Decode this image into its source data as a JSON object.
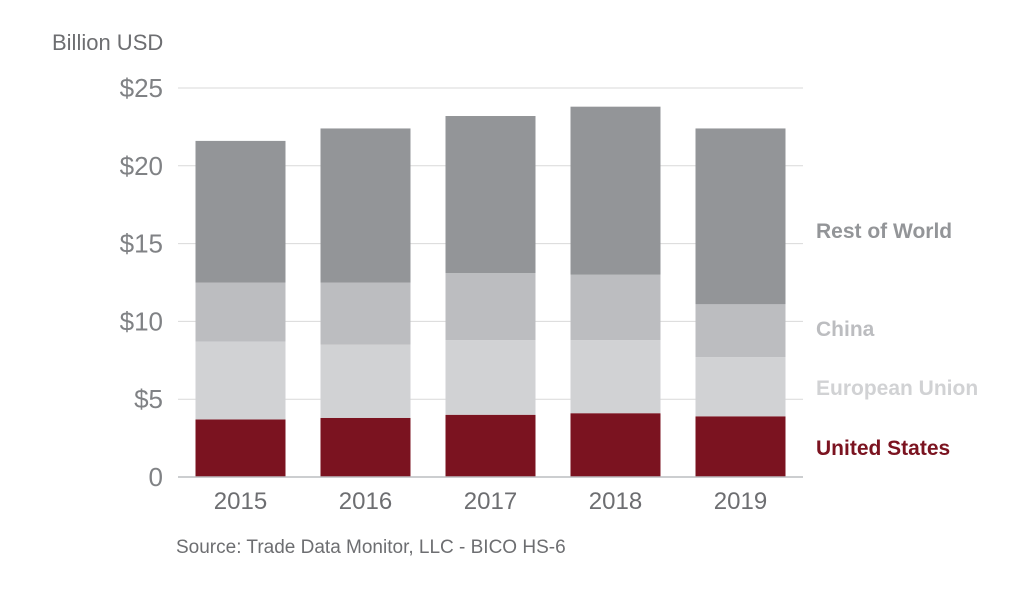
{
  "chart_data": {
    "type": "bar",
    "stacked": true,
    "ylabel": "Billion USD",
    "source": "Source: Trade Data Monitor, LLC - BICO HS-6",
    "categories": [
      "2015",
      "2016",
      "2017",
      "2018",
      "2019"
    ],
    "ylim": [
      0,
      25
    ],
    "yticks": [
      {
        "value": 0,
        "label": "0"
      },
      {
        "value": 5,
        "label": "$5"
      },
      {
        "value": 10,
        "label": "$10"
      },
      {
        "value": 15,
        "label": "$15"
      },
      {
        "value": 20,
        "label": "$20"
      },
      {
        "value": 25,
        "label": "$25"
      }
    ],
    "grid": true,
    "legend_placement": "right",
    "series": [
      {
        "name": "United States",
        "color": "#7b1320",
        "values": [
          3.7,
          3.8,
          4.0,
          4.1,
          3.9
        ]
      },
      {
        "name": "European Union",
        "color": "#d1d2d4",
        "values": [
          5.0,
          4.7,
          4.8,
          4.7,
          3.8
        ]
      },
      {
        "name": "China",
        "color": "#bcbdc0",
        "values": [
          3.8,
          4.0,
          4.3,
          4.2,
          3.4
        ]
      },
      {
        "name": "Rest of World",
        "color": "#939598",
        "values": [
          9.1,
          9.9,
          10.1,
          10.8,
          11.3
        ]
      }
    ]
  }
}
